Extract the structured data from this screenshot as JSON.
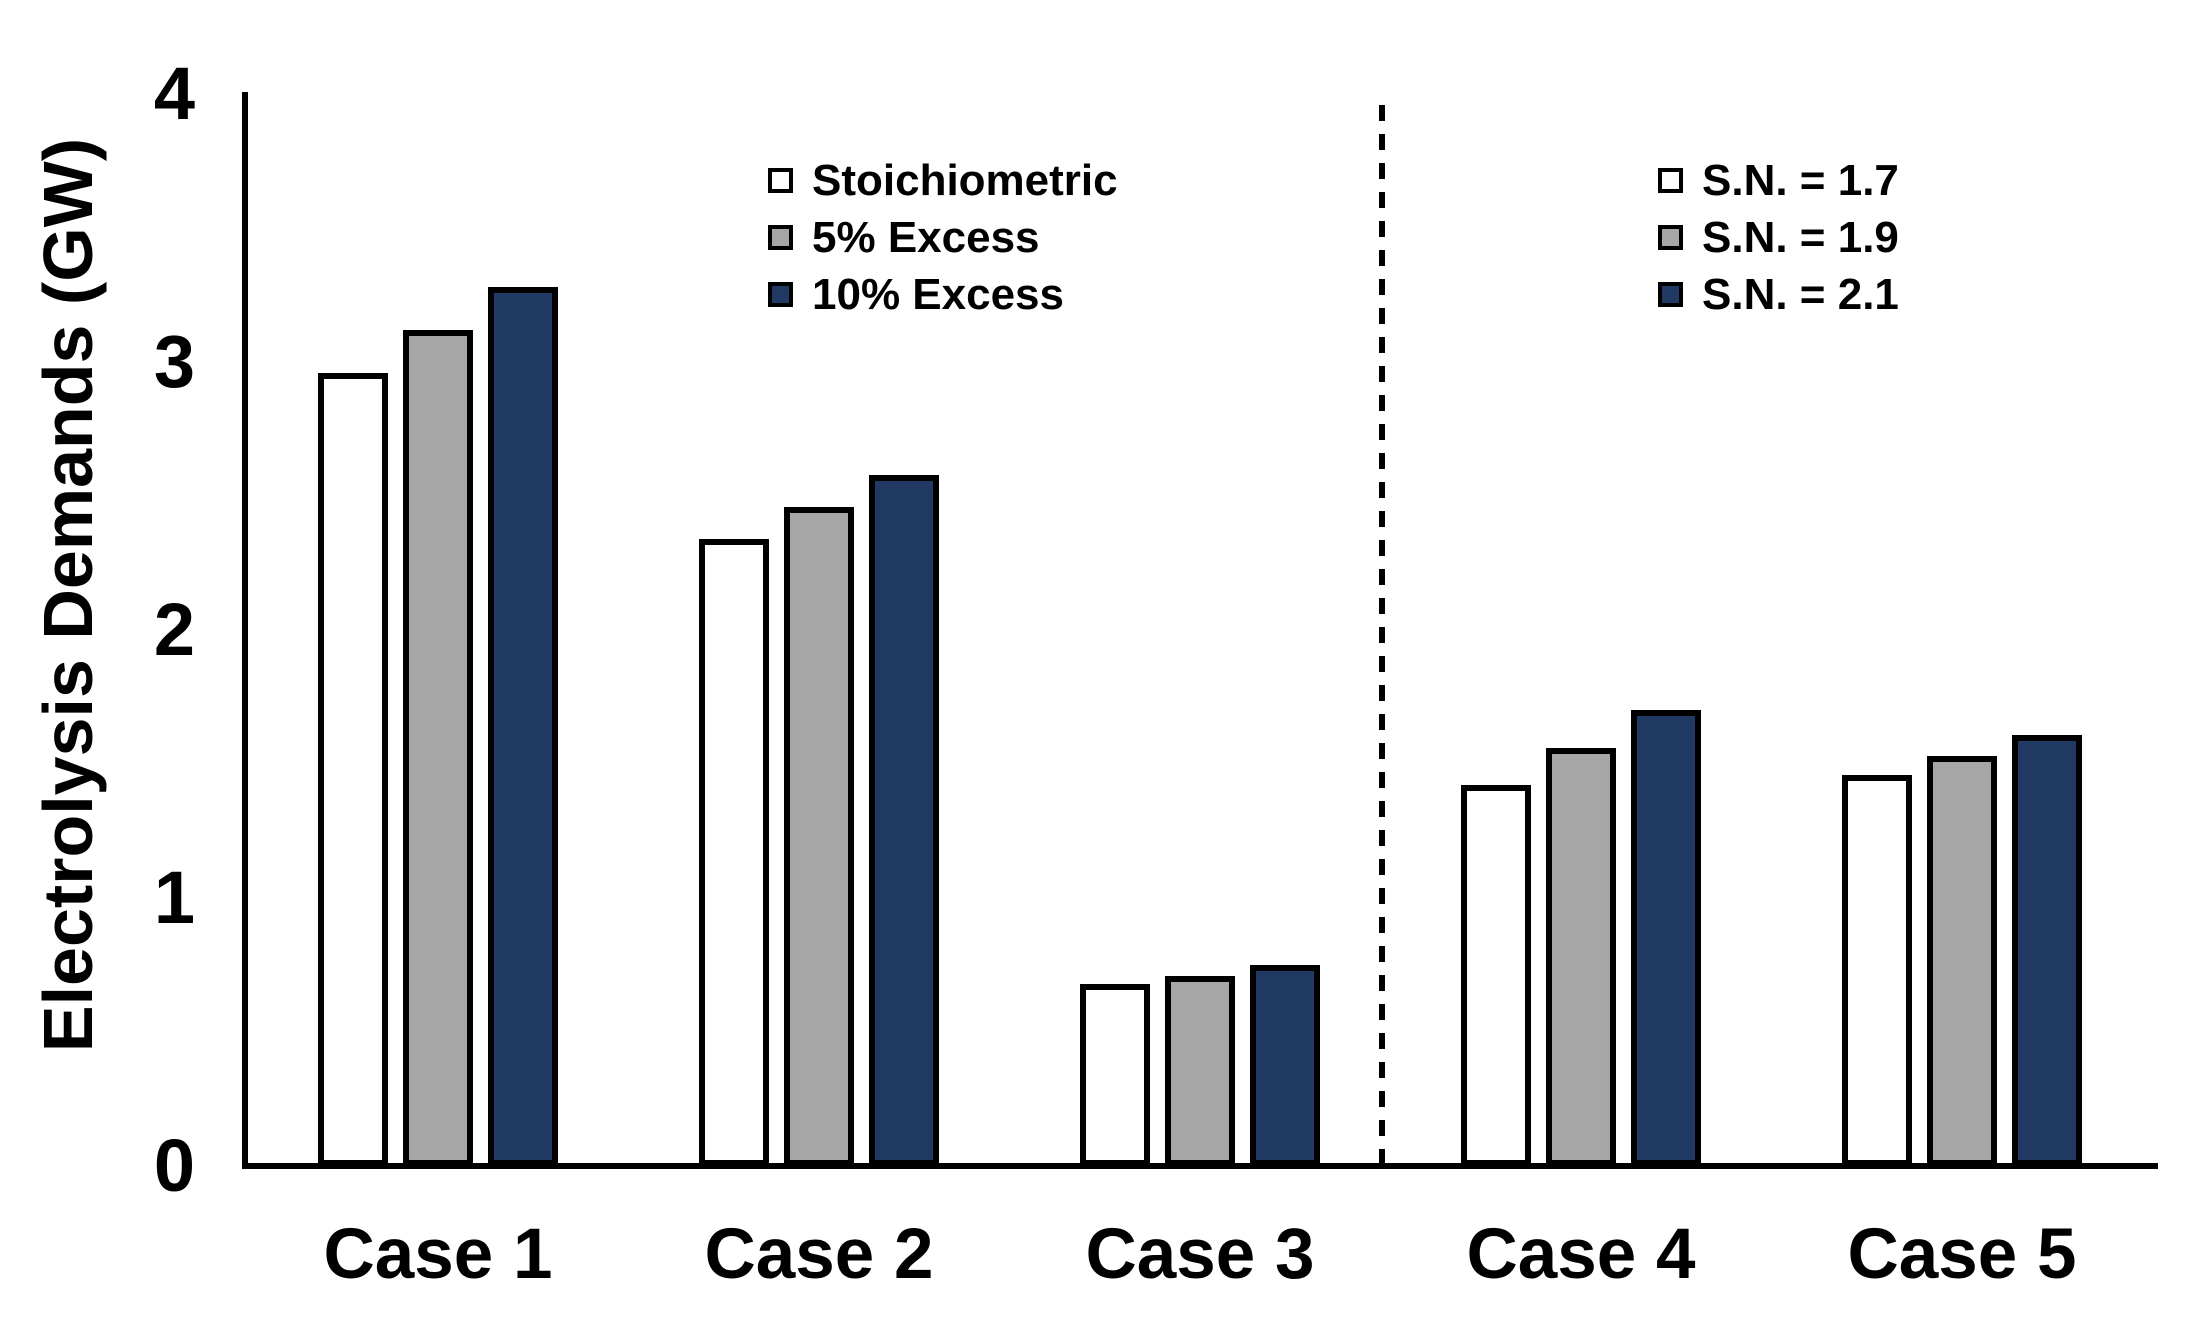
{
  "chart_data": {
    "type": "bar",
    "title": "",
    "xlabel": "",
    "ylabel": "Electrolysis Demands (GW)",
    "ylim": [
      0,
      4
    ],
    "yticks": [
      0,
      1,
      2,
      3,
      4
    ],
    "grid": false,
    "categories": [
      "Case 1",
      "Case 2",
      "Case 3",
      "Case 4",
      "Case 5"
    ],
    "series": [
      {
        "name": "Stoichiometric",
        "alt_name": "S.N. = 1.7",
        "fill": "#FFFFFF",
        "values": [
          2.96,
          2.34,
          0.68,
          1.42,
          1.46
        ]
      },
      {
        "name": "5% Excess",
        "alt_name": "S.N. = 1.9",
        "fill": "#A6A6A6",
        "values": [
          3.12,
          2.46,
          0.71,
          1.56,
          1.53
        ]
      },
      {
        "name": "10% Excess",
        "alt_name": "S.N. = 2.1",
        "fill": "#203A64",
        "values": [
          3.28,
          2.58,
          0.75,
          1.7,
          1.61
        ]
      }
    ],
    "legends": [
      {
        "id": "legend-excess",
        "position": "inside-top-left",
        "applies_to": [
          "Case 1",
          "Case 2",
          "Case 3"
        ],
        "entries": [
          {
            "label": "Stoichiometric",
            "fill": "#FFFFFF"
          },
          {
            "label": "5% Excess",
            "fill": "#A6A6A6"
          },
          {
            "label": "10% Excess",
            "fill": "#203A64"
          }
        ]
      },
      {
        "id": "legend-sn",
        "position": "inside-top-right",
        "applies_to": [
          "Case 4",
          "Case 5"
        ],
        "entries": [
          {
            "label": "S.N. = 1.7",
            "fill": "#FFFFFF"
          },
          {
            "label": "S.N. = 1.9",
            "fill": "#A6A6A6"
          },
          {
            "label": "S.N. = 2.1",
            "fill": "#203A64"
          }
        ]
      }
    ],
    "separator": {
      "style": "dashed-vertical-line",
      "color": "#000000",
      "between_categories": [
        "Case 3",
        "Case 4"
      ]
    },
    "colors": {
      "axis": "#000000",
      "text": "#000000",
      "background": "#FFFFFF"
    }
  }
}
